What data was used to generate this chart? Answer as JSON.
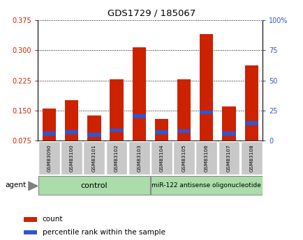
{
  "title": "GDS1729 / 185067",
  "samples": [
    "GSM83090",
    "GSM83100",
    "GSM83101",
    "GSM83102",
    "GSM83103",
    "GSM83104",
    "GSM83105",
    "GSM83106",
    "GSM83107",
    "GSM83108"
  ],
  "count_values": [
    0.155,
    0.175,
    0.138,
    0.228,
    0.308,
    0.128,
    0.228,
    0.34,
    0.16,
    0.262
  ],
  "percentile_values": [
    0.092,
    0.095,
    0.088,
    0.1,
    0.135,
    0.095,
    0.098,
    0.145,
    0.092,
    0.118
  ],
  "ylim": [
    0.075,
    0.375
  ],
  "yticks": [
    0.075,
    0.15,
    0.225,
    0.3,
    0.375
  ],
  "right_yticks": [
    0,
    25,
    50,
    75,
    100
  ],
  "bar_color": "#cc2200",
  "percentile_color": "#3355cc",
  "group1_label": "control",
  "group2_label": "miR-122 antisense oligonucleotide",
  "group_bg_color": "#aaddaa",
  "tick_bg_color": "#c8c8c8",
  "bar_width": 0.6,
  "left_label_color": "#cc2200",
  "right_label_color": "#3355cc",
  "bg_color": "#ffffff"
}
